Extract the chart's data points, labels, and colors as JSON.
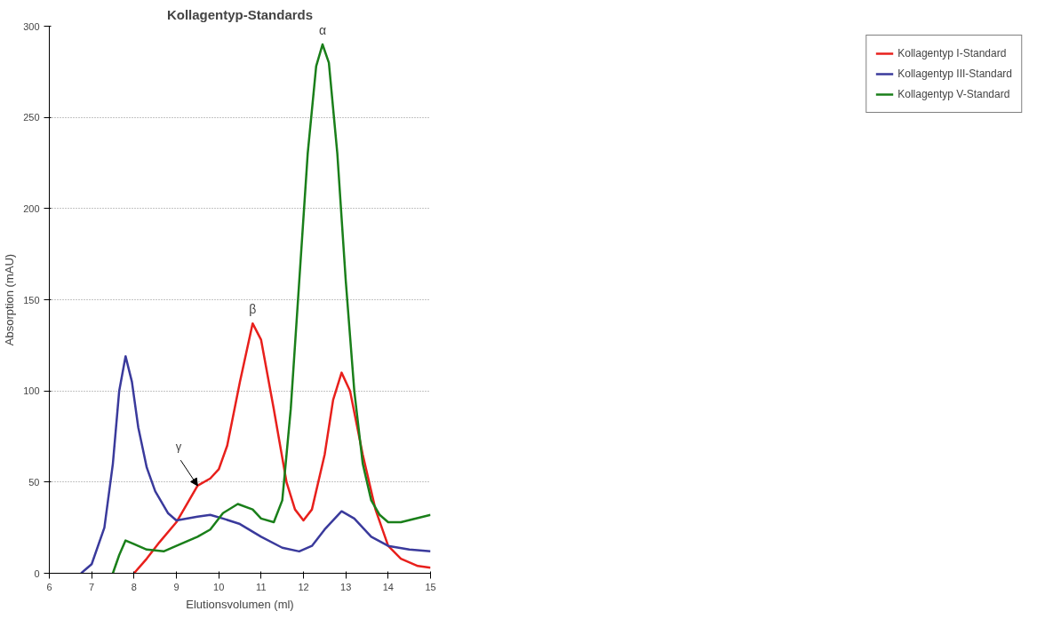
{
  "chart_data": {
    "type": "line",
    "title": "Kollagentyp-Standards",
    "xlabel": "Elutionsvolumen (ml)",
    "ylabel": "Absorption (mAU)",
    "xlim": [
      6,
      15
    ],
    "xticks": [
      6,
      7,
      8,
      9,
      10,
      11,
      12,
      13,
      14,
      15
    ],
    "ylim": [
      0,
      300
    ],
    "yticks": [
      0,
      50,
      100,
      150,
      200,
      250,
      300
    ],
    "grid": "y",
    "legend": "right",
    "marker": "none",
    "line_style": "solid",
    "series": [
      {
        "name": "Kollagentyp I-Standard",
        "color": "#e8201c",
        "x": [
          8.0,
          8.3,
          8.6,
          9.0,
          9.5,
          9.8,
          10.0,
          10.2,
          10.5,
          10.8,
          11.0,
          11.3,
          11.6,
          11.8,
          12.0,
          12.2,
          12.5,
          12.7,
          12.9,
          13.1,
          13.4,
          13.7,
          14.0,
          14.3,
          14.7,
          15.0
        ],
        "values": [
          0,
          8,
          17,
          28,
          48,
          52,
          57,
          70,
          105,
          137,
          128,
          90,
          50,
          35,
          29,
          35,
          65,
          95,
          110,
          100,
          65,
          35,
          15,
          8,
          4,
          3
        ]
      },
      {
        "name": "Kollagentyp III-Standard",
        "color": "#3a3a9c",
        "x": [
          6.75,
          7.0,
          7.3,
          7.5,
          7.65,
          7.8,
          7.95,
          8.1,
          8.3,
          8.5,
          8.8,
          9.0,
          9.5,
          9.8,
          10.1,
          10.5,
          11.0,
          11.5,
          11.9,
          12.2,
          12.5,
          12.9,
          13.2,
          13.6,
          14.0,
          14.5,
          15.0
        ],
        "values": [
          0,
          5,
          25,
          60,
          100,
          119,
          105,
          80,
          58,
          45,
          33,
          29,
          31,
          32,
          30,
          27,
          20,
          14,
          12,
          15,
          24,
          34,
          30,
          20,
          15,
          13,
          12
        ]
      },
      {
        "name": "Kollagentyp V-Standard",
        "color": "#1a7f1a",
        "x": [
          7.5,
          7.65,
          7.8,
          8.0,
          8.3,
          8.7,
          9.0,
          9.5,
          9.8,
          10.1,
          10.45,
          10.8,
          11.0,
          11.3,
          11.5,
          11.7,
          11.9,
          12.1,
          12.3,
          12.45,
          12.6,
          12.8,
          13.0,
          13.2,
          13.4,
          13.6,
          13.8,
          14.0,
          14.3,
          15.0
        ],
        "values": [
          0,
          10,
          18,
          16,
          13,
          12,
          15,
          20,
          24,
          33,
          38,
          35,
          30,
          28,
          40,
          90,
          160,
          230,
          278,
          290,
          280,
          230,
          160,
          100,
          60,
          40,
          32,
          28,
          28,
          32
        ]
      }
    ],
    "annotations": [
      {
        "text": "α",
        "x": 12.45,
        "y": 290
      },
      {
        "text": "β",
        "x": 10.8,
        "y": 137
      },
      {
        "text": "γ",
        "x": 9.5,
        "y": 48
      }
    ]
  }
}
